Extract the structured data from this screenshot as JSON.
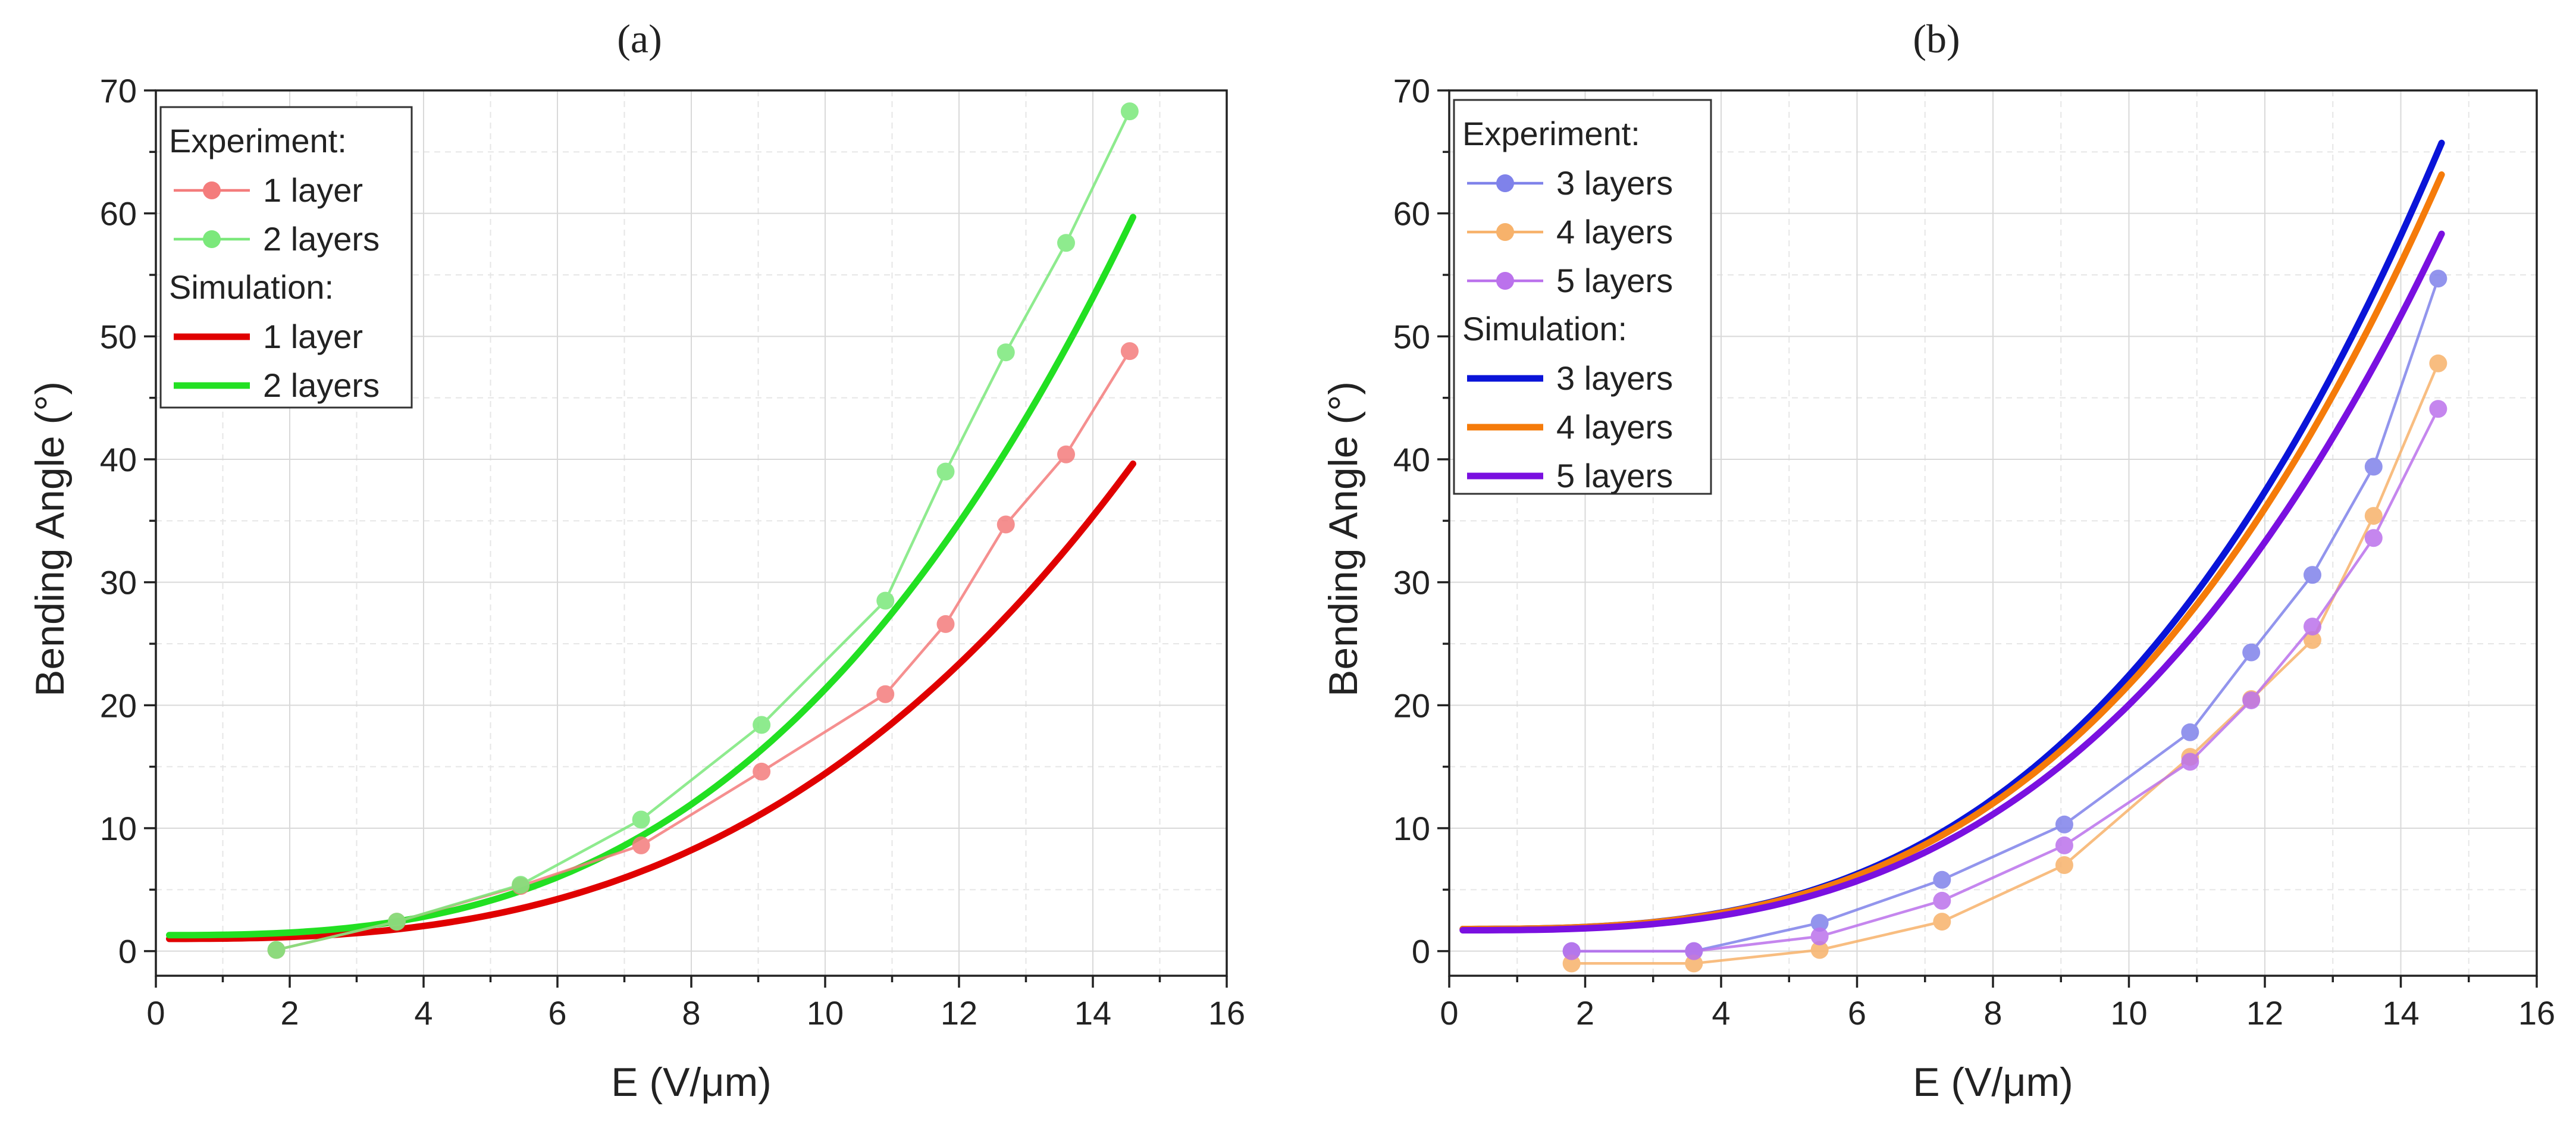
{
  "chart_data": [
    {
      "type": "line",
      "panel_label": "(a)",
      "xlabel": "E (V/μm)",
      "ylabel": "Bending Angle (°)",
      "xlim": [
        0,
        16
      ],
      "ylim": [
        -2,
        70
      ],
      "xticks": [
        0,
        2,
        4,
        6,
        8,
        10,
        12,
        14,
        16
      ],
      "yticks": [
        0,
        10,
        20,
        30,
        40,
        50,
        60,
        70
      ],
      "grid": true,
      "legend_position": "top-left",
      "legend": {
        "experiment_title": "Experiment:",
        "simulation_title": "Simulation:"
      },
      "experiment_series": [
        {
          "name": "1 layer",
          "color": "#f47c7c",
          "x": [
            1.8,
            3.6,
            5.45,
            7.25,
            9.05,
            10.9,
            11.8,
            12.7,
            13.6,
            14.55
          ],
          "y": [
            0.1,
            2.4,
            5.3,
            8.6,
            14.6,
            20.9,
            26.6,
            34.7,
            40.4,
            48.8
          ]
        },
        {
          "name": "2 layers",
          "color": "#7be87b",
          "x": [
            1.8,
            3.6,
            5.45,
            7.25,
            9.05,
            10.9,
            11.8,
            12.7,
            13.6,
            14.55
          ],
          "y": [
            0.1,
            2.4,
            5.4,
            10.7,
            18.4,
            28.5,
            39.0,
            48.7,
            57.6,
            68.3
          ]
        }
      ],
      "simulation_series": [
        {
          "name": "1 layer",
          "color": "#e00000",
          "x_start": 0.2,
          "x_end": 14.6,
          "y0": 1.0,
          "a": 0.0218,
          "p": 2.79
        },
        {
          "name": "2 layers",
          "color": "#22e022",
          "x_start": 0.2,
          "x_end": 14.6,
          "y0": 1.3,
          "a": 0.0296,
          "p": 2.83
        }
      ]
    },
    {
      "type": "line",
      "panel_label": "(b)",
      "xlabel": "E (V/μm)",
      "ylabel": "Bending Angle (°)",
      "xlim": [
        0,
        16
      ],
      "ylim": [
        -2,
        70
      ],
      "xticks": [
        0,
        2,
        4,
        6,
        8,
        10,
        12,
        14,
        16
      ],
      "yticks": [
        0,
        10,
        20,
        30,
        40,
        50,
        60,
        70
      ],
      "grid": true,
      "legend_position": "top-left",
      "legend": {
        "experiment_title": "Experiment:",
        "simulation_title": "Simulation:"
      },
      "experiment_series": [
        {
          "name": "3 layers",
          "color": "#7f82ea",
          "x": [
            1.8,
            3.6,
            5.45,
            7.25,
            9.05,
            10.9,
            11.8,
            12.7,
            13.6,
            14.55
          ],
          "y": [
            0.0,
            0.0,
            2.3,
            5.8,
            10.3,
            17.8,
            24.3,
            30.6,
            39.4,
            54.7
          ]
        },
        {
          "name": "4 layers",
          "color": "#f7b26b",
          "x": [
            1.8,
            3.6,
            5.45,
            7.25,
            9.05,
            10.9,
            11.8,
            12.7,
            13.6,
            14.55
          ],
          "y": [
            -1.0,
            -1.0,
            0.1,
            2.4,
            7.0,
            15.8,
            20.5,
            25.3,
            35.4,
            47.8
          ]
        },
        {
          "name": "5 layers",
          "color": "#bb72ec",
          "x": [
            1.8,
            3.6,
            5.45,
            7.25,
            9.05,
            10.9,
            11.8,
            12.7,
            13.6,
            14.55
          ],
          "y": [
            0.0,
            0.0,
            1.2,
            4.1,
            8.6,
            15.4,
            20.4,
            26.4,
            33.6,
            44.1
          ]
        }
      ],
      "simulation_series": [
        {
          "name": "3 layers",
          "color": "#0a14d8",
          "x_start": 0.2,
          "x_end": 14.6,
          "y0": 1.8,
          "a": 0.0211,
          "p": 2.99
        },
        {
          "name": "4 layers",
          "color": "#f57b0a",
          "x_start": 0.2,
          "x_end": 14.6,
          "y0": 1.8,
          "a": 0.0208,
          "p": 2.98
        },
        {
          "name": "5 layers",
          "color": "#7a10e0",
          "x_start": 0.2,
          "x_end": 14.6,
          "y0": 1.7,
          "a": 0.0192,
          "p": 2.98
        }
      ]
    }
  ]
}
